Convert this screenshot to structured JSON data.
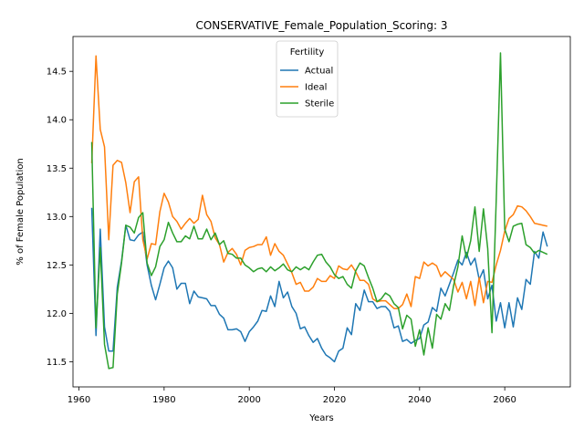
{
  "chart_data": {
    "type": "line",
    "title": "CONSERVATIVE_Female_Population_Scoring: 3",
    "xlabel": "Years",
    "ylabel": "% of Female Population",
    "xlim": [
      1958.6,
      2075.4
    ],
    "ylim": [
      11.24,
      14.86
    ],
    "xticks": [
      1960,
      1980,
      2000,
      2020,
      2040,
      2060
    ],
    "yticks": [
      11.5,
      12.0,
      12.5,
      13.0,
      13.5,
      14.0,
      14.5
    ],
    "ytick_labels": [
      "11.5",
      "12.0",
      "12.5",
      "13.0",
      "13.5",
      "14.0",
      "14.5"
    ],
    "grid": false,
    "legend": {
      "title": "Fertility",
      "position": "top-center"
    },
    "x": [
      1963,
      1964,
      1965,
      1966,
      1967,
      1968,
      1969,
      1970,
      1971,
      1972,
      1973,
      1974,
      1975,
      1976,
      1977,
      1978,
      1979,
      1980,
      1981,
      1982,
      1983,
      1984,
      1985,
      1986,
      1987,
      1988,
      1989,
      1990,
      1991,
      1992,
      1993,
      1994,
      1995,
      1996,
      1997,
      1998,
      1999,
      2000,
      2001,
      2002,
      2003,
      2004,
      2005,
      2006,
      2007,
      2008,
      2009,
      2010,
      2011,
      2012,
      2013,
      2014,
      2015,
      2016,
      2017,
      2018,
      2019,
      2020,
      2021,
      2022,
      2023,
      2024,
      2025,
      2026,
      2027,
      2028,
      2029,
      2030,
      2031,
      2032,
      2033,
      2034,
      2035,
      2036,
      2037,
      2038,
      2039,
      2040,
      2041,
      2042,
      2043,
      2044,
      2045,
      2046,
      2047,
      2048,
      2049,
      2050,
      2051,
      2052,
      2053,
      2054,
      2055,
      2056,
      2057,
      2058,
      2059,
      2060,
      2061,
      2062,
      2063,
      2064,
      2065,
      2066,
      2067,
      2068,
      2069,
      2070
    ],
    "series": [
      {
        "name": "Actual",
        "color": "#1f77b4",
        "values": [
          13.09,
          11.77,
          12.87,
          11.86,
          11.61,
          11.61,
          12.27,
          12.54,
          12.91,
          12.76,
          12.75,
          12.81,
          12.84,
          12.5,
          12.29,
          12.14,
          12.3,
          12.47,
          12.54,
          12.47,
          12.25,
          12.31,
          12.31,
          12.1,
          12.23,
          12.17,
          12.16,
          12.15,
          12.08,
          12.08,
          11.99,
          11.95,
          11.83,
          11.83,
          11.84,
          11.81,
          11.71,
          11.81,
          11.86,
          11.92,
          12.03,
          12.02,
          12.18,
          12.07,
          12.33,
          12.16,
          12.22,
          12.07,
          12.0,
          11.84,
          11.86,
          11.77,
          11.7,
          11.74,
          11.64,
          11.57,
          11.54,
          11.5,
          11.61,
          11.64,
          11.85,
          11.78,
          12.1,
          12.03,
          12.24,
          12.12,
          12.12,
          12.05,
          12.07,
          12.07,
          12.02,
          11.85,
          11.87,
          11.71,
          11.73,
          11.69,
          11.72,
          11.74,
          11.88,
          11.91,
          12.06,
          12.02,
          12.26,
          12.18,
          12.3,
          12.42,
          12.55,
          12.5,
          12.63,
          12.5,
          12.57,
          12.35,
          12.45,
          12.15,
          12.29,
          11.92,
          12.11,
          11.85,
          12.11,
          11.86,
          12.16,
          12.04,
          12.35,
          12.3,
          12.64,
          12.57,
          12.84,
          12.69
        ]
      },
      {
        "name": "Ideal",
        "color": "#ff7f0e",
        "values": [
          13.55,
          14.66,
          13.9,
          13.72,
          12.76,
          13.53,
          13.58,
          13.56,
          13.35,
          13.04,
          13.36,
          13.41,
          12.76,
          12.56,
          12.72,
          12.71,
          13.05,
          13.24,
          13.15,
          13.0,
          12.95,
          12.87,
          12.93,
          12.98,
          12.93,
          12.97,
          13.22,
          13.02,
          12.95,
          12.78,
          12.71,
          12.53,
          12.63,
          12.67,
          12.61,
          12.5,
          12.65,
          12.68,
          12.69,
          12.71,
          12.71,
          12.79,
          12.6,
          12.72,
          12.64,
          12.6,
          12.51,
          12.42,
          12.3,
          12.32,
          12.23,
          12.23,
          12.27,
          12.36,
          12.33,
          12.33,
          12.39,
          12.36,
          12.49,
          12.46,
          12.45,
          12.5,
          12.43,
          12.34,
          12.34,
          12.3,
          12.15,
          12.12,
          12.13,
          12.13,
          12.09,
          12.05,
          12.05,
          12.09,
          12.2,
          12.07,
          12.38,
          12.36,
          12.53,
          12.49,
          12.52,
          12.49,
          12.38,
          12.43,
          12.39,
          12.35,
          12.22,
          12.32,
          12.15,
          12.33,
          12.08,
          12.37,
          12.11,
          12.33,
          12.32,
          12.5,
          12.65,
          12.85,
          12.98,
          13.02,
          13.11,
          13.1,
          13.06,
          13.0,
          12.93,
          12.92,
          12.91,
          12.9
        ]
      },
      {
        "name": "Sterile",
        "color": "#2ca02c",
        "values": [
          13.77,
          11.85,
          12.68,
          11.68,
          11.43,
          11.44,
          12.2,
          12.52,
          12.91,
          12.89,
          12.83,
          12.99,
          13.04,
          12.52,
          12.39,
          12.48,
          12.69,
          12.76,
          12.94,
          12.83,
          12.74,
          12.74,
          12.8,
          12.77,
          12.9,
          12.77,
          12.77,
          12.87,
          12.76,
          12.83,
          12.71,
          12.75,
          12.62,
          12.61,
          12.57,
          12.57,
          12.5,
          12.47,
          12.43,
          12.46,
          12.47,
          12.43,
          12.48,
          12.44,
          12.47,
          12.51,
          12.45,
          12.43,
          12.48,
          12.45,
          12.48,
          12.45,
          12.53,
          12.6,
          12.61,
          12.53,
          12.48,
          12.4,
          12.36,
          12.38,
          12.3,
          12.26,
          12.44,
          12.52,
          12.49,
          12.37,
          12.26,
          12.12,
          12.15,
          12.21,
          12.18,
          12.1,
          12.06,
          11.84,
          11.98,
          11.94,
          11.66,
          11.83,
          11.57,
          11.85,
          11.64,
          11.99,
          11.94,
          12.1,
          12.03,
          12.29,
          12.48,
          12.8,
          12.57,
          12.75,
          13.1,
          12.64,
          13.08,
          12.67,
          11.8,
          13.17,
          14.69,
          12.87,
          12.74,
          12.9,
          12.92,
          12.93,
          12.71,
          12.68,
          12.62,
          12.65,
          12.63,
          12.61
        ]
      }
    ]
  }
}
